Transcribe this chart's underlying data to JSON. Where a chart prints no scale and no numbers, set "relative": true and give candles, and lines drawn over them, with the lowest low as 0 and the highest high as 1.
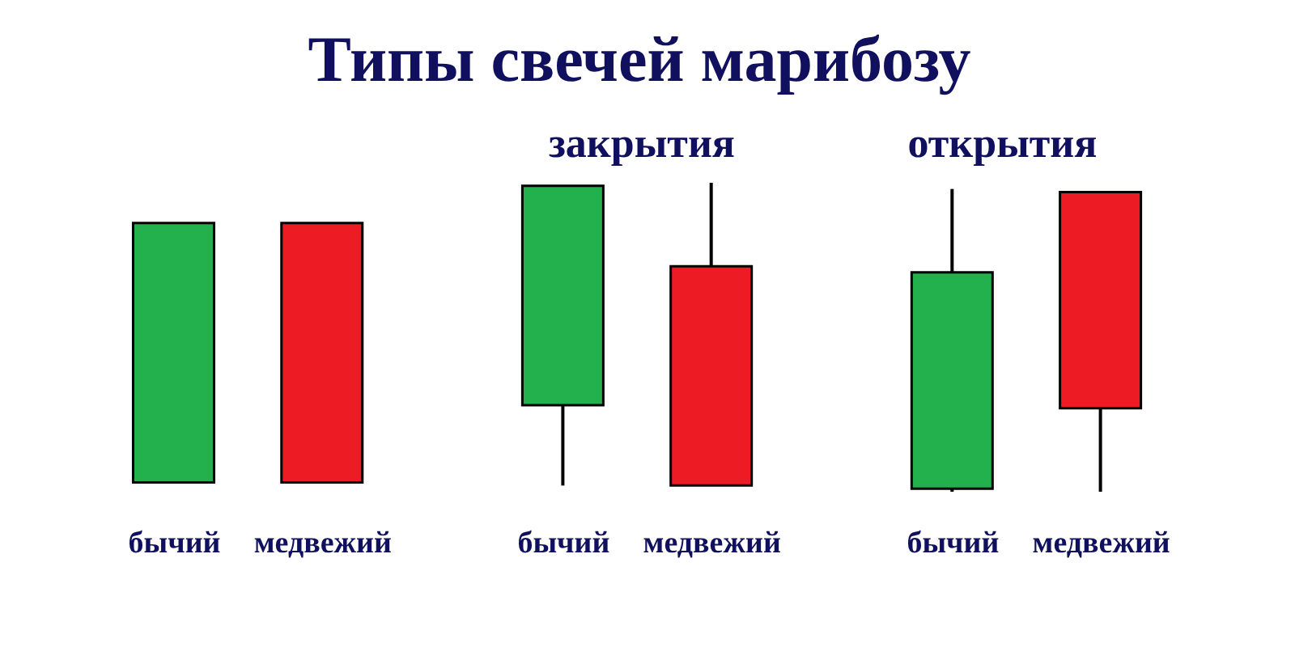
{
  "chart_data": {
    "type": "candlestick",
    "title": "Типы свечей марибозу",
    "relative": true,
    "categories": [
      "бычий",
      "медвежий",
      "бычий",
      "медвежий",
      "бычий",
      "медвежий"
    ],
    "ohlc": [
      [
        0.03,
        0.87,
        0.03,
        0.87
      ],
      [
        0.87,
        0.87,
        0.03,
        0.03
      ],
      [
        0.28,
        0.99,
        0.02,
        0.99
      ],
      [
        0.73,
        1,
        0.02,
        0.02
      ],
      [
        0.01,
        0.98,
        0,
        0.71
      ],
      [
        0.97,
        0.97,
        0,
        0.27
      ]
    ],
    "colors": [
      "#22b14c",
      "#ed1c24",
      "#22b14c",
      "#ed1c24",
      "#22b14c",
      "#ed1c24"
    ],
    "annotations": [
      "закрытия",
      "открытия"
    ]
  }
}
